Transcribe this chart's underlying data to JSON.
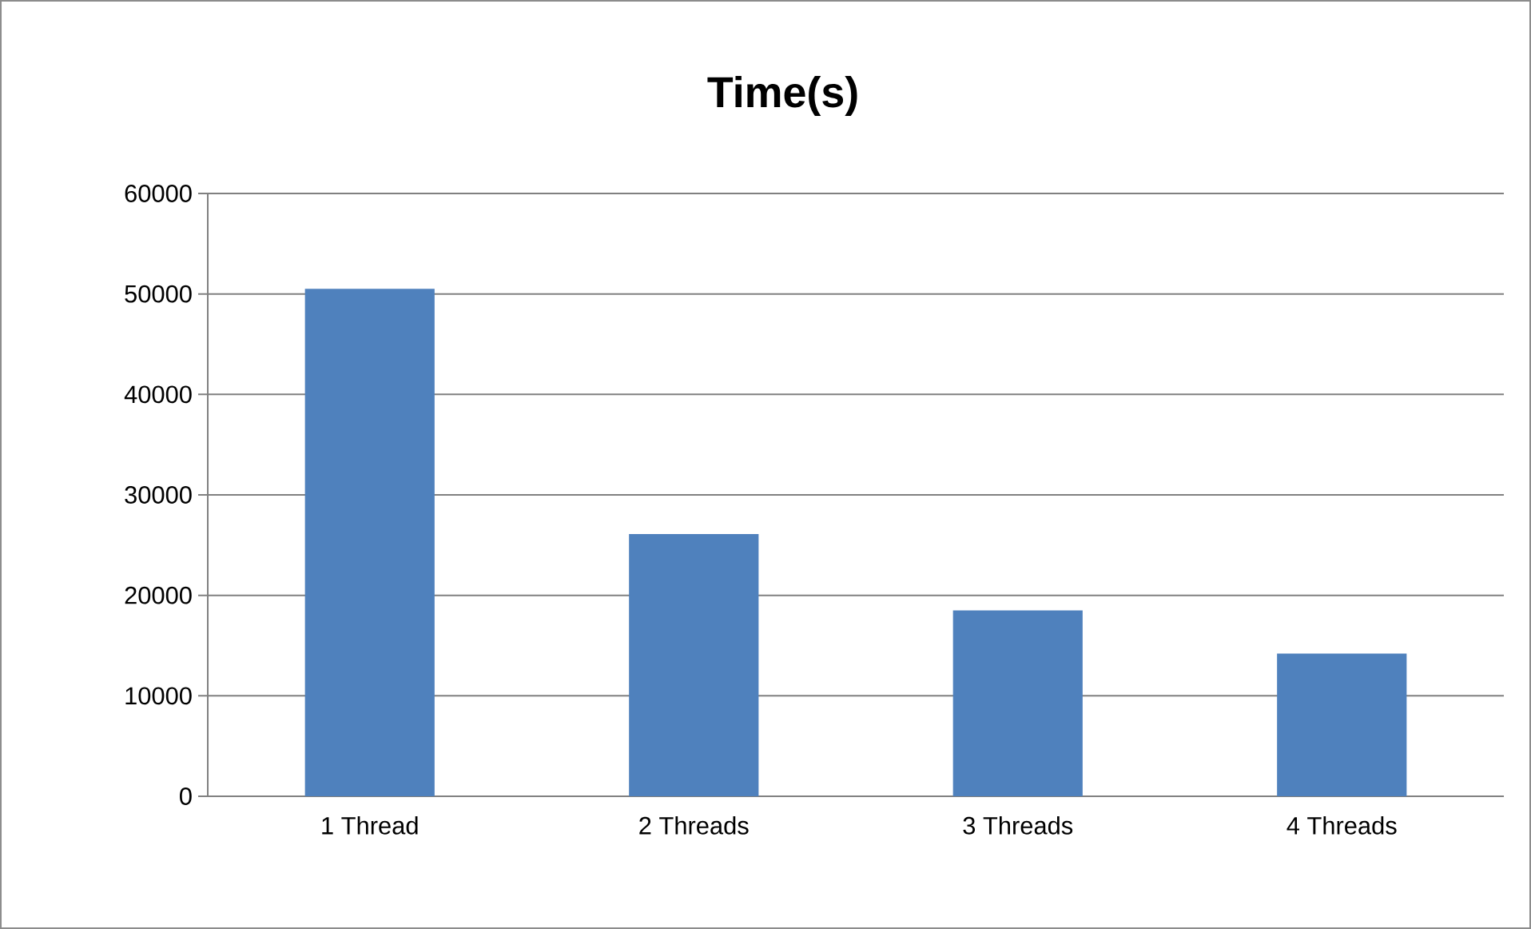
{
  "chart_data": {
    "type": "bar",
    "title": "Time(s)",
    "categories": [
      "1 Thread",
      "2 Threads",
      "3 Threads",
      "4 Threads"
    ],
    "values": [
      50500,
      26100,
      18500,
      14200
    ],
    "color": "#4f81bd",
    "ylim": [
      0,
      60000
    ],
    "yticks": [
      0,
      10000,
      20000,
      30000,
      40000,
      50000,
      60000
    ],
    "grid": "y"
  }
}
